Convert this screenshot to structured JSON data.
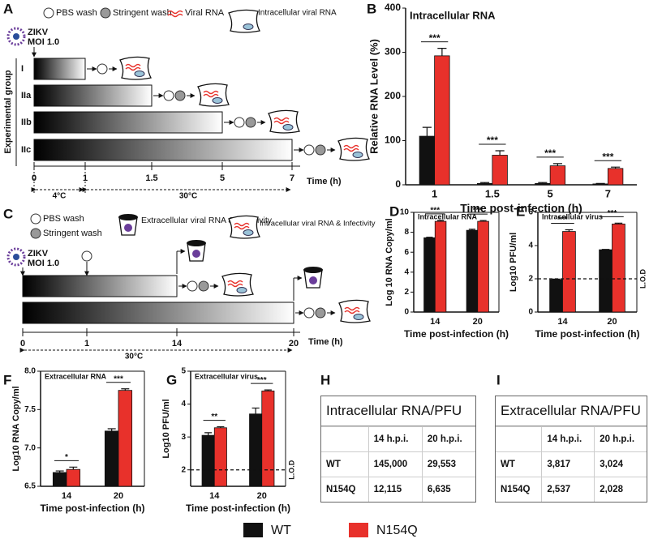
{
  "panel_labels": [
    "A",
    "B",
    "C",
    "D",
    "E",
    "F",
    "G",
    "H",
    "I"
  ],
  "diagram_a": {
    "legend": [
      "PBS wash",
      "Stringent wash",
      "Viral RNA",
      "Intracellular viral RNA"
    ],
    "virus": "ZIKV",
    "moi": "MOI 1.0",
    "y_label": "Experimental group",
    "groups": [
      {
        "label": "I",
        "end": 1
      },
      {
        "label": "IIa",
        "end": 1.5
      },
      {
        "label": "IIb",
        "end": 5
      },
      {
        "label": "IIc",
        "end": 7
      }
    ],
    "xticks": [
      0,
      1,
      1.5,
      5,
      7
    ],
    "x_label": "Time (h)",
    "phases": [
      "4°C",
      "30°C"
    ]
  },
  "diagram_c": {
    "legend": [
      "PBS wash",
      "Stringent wash",
      "Extracellular viral RNA & Infectivity",
      "Intracellular viral RNA & Infectivity"
    ],
    "virus": "ZIKV",
    "moi": "MOI 1.0",
    "bars": [
      {
        "end": 14
      },
      {
        "end": 20
      }
    ],
    "xticks": [
      0,
      1,
      14,
      20
    ],
    "x_label": "Time (h)",
    "phase": "30°C"
  },
  "chart_data": [
    {
      "type": "bar",
      "title": "Intracellular RNA",
      "x_label": "Time post-infection (h)",
      "y_label": "Relative RNA Level (%)",
      "categories": [
        "1",
        "1.5",
        "5",
        "7"
      ],
      "series": [
        {
          "values": [
            110,
            3,
            3,
            2
          ],
          "errors": [
            20,
            2,
            2,
            1
          ]
        },
        {
          "values": [
            292,
            67,
            43,
            37
          ],
          "errors": [
            17,
            10,
            5,
            3
          ]
        }
      ],
      "significance": [
        "***",
        "***",
        "***",
        "***"
      ],
      "ylim": [
        0,
        400
      ],
      "yticks": [
        0,
        100,
        200,
        300,
        400
      ]
    },
    {
      "type": "bar",
      "title": "Intracellular RNA",
      "x_label": "Time post-infection (h)",
      "y_label": "Log 10 RNA Copy/ml",
      "categories": [
        "14",
        "20"
      ],
      "series": [
        {
          "values": [
            7.45,
            8.2
          ],
          "errors": [
            0.05,
            0.1
          ]
        },
        {
          "values": [
            9.1,
            9.1
          ],
          "errors": [
            0.1,
            0.08
          ]
        }
      ],
      "significance": [
        "***",
        "***"
      ],
      "ylim": [
        0,
        10
      ],
      "yticks": [
        0,
        2,
        4,
        6,
        8,
        10
      ]
    },
    {
      "type": "bar",
      "title": "Intracellular virus",
      "x_label": "Time post-infection (h)",
      "y_label": "Log10 PFU/ml",
      "categories": [
        "14",
        "20"
      ],
      "series": [
        {
          "values": [
            1.95,
            3.75
          ],
          "errors": [
            0.03,
            0.02
          ]
        },
        {
          "values": [
            4.85,
            5.3
          ],
          "errors": [
            0.1,
            0.05
          ]
        }
      ],
      "significance": [
        "***",
        "***"
      ],
      "ylim": [
        0,
        6
      ],
      "yticks": [
        0,
        2,
        4,
        6
      ],
      "lod": {
        "value": 2,
        "label": "L.O.D"
      }
    },
    {
      "type": "bar",
      "title": "Extracellular RNA",
      "x_label": "Time post-infection (h)",
      "y_label": "Log10 RNA Copy/ml",
      "categories": [
        "14",
        "20"
      ],
      "series": [
        {
          "values": [
            6.68,
            7.22
          ],
          "errors": [
            0.02,
            0.03
          ]
        },
        {
          "values": [
            6.72,
            7.75
          ],
          "errors": [
            0.03,
            0.02
          ]
        }
      ],
      "significance": [
        "*",
        "***"
      ],
      "ylim": [
        6.5,
        8.0
      ],
      "yticks": [
        6.5,
        {
          "value": 7,
          "label": "7.0"
        },
        7.5,
        {
          "value": 8,
          "label": "8.0"
        }
      ]
    },
    {
      "type": "bar",
      "title": "Extracellular virus",
      "x_label": "Time post-infection (h)",
      "y_label": "Log10 PFU/ml",
      "categories": [
        "14",
        "20"
      ],
      "series": [
        {
          "values": [
            3.05,
            3.7
          ],
          "errors": [
            0.08,
            0.18
          ]
        },
        {
          "values": [
            3.28,
            4.4
          ],
          "errors": [
            0.03,
            0.03
          ]
        }
      ],
      "significance": [
        "**",
        "***"
      ],
      "ylim": [
        1.5,
        5
      ],
      "yticks": [
        2,
        3,
        4,
        5
      ],
      "lod": {
        "value": 2,
        "label": "L.O.D"
      }
    }
  ],
  "tables": [
    {
      "title": "Intracellular RNA/PFU",
      "header": [
        "14 h.p.i.",
        "20 h.p.i."
      ],
      "rows": [
        [
          "WT",
          "145,000",
          "29,553"
        ],
        [
          "N154Q",
          "12,115",
          "6,635"
        ]
      ]
    },
    {
      "title": "Extracellular RNA/PFU",
      "header": [
        "14 h.p.i.",
        "20 h.p.i."
      ],
      "rows": [
        [
          "WT",
          "3,817",
          "3,024"
        ],
        [
          "N154Q",
          "2,537",
          "2,028"
        ]
      ]
    }
  ],
  "legend": {
    "items": [
      {
        "name": "WT",
        "color": "#111111"
      },
      {
        "name": "N154Q",
        "color": "#e8312b"
      }
    ]
  }
}
